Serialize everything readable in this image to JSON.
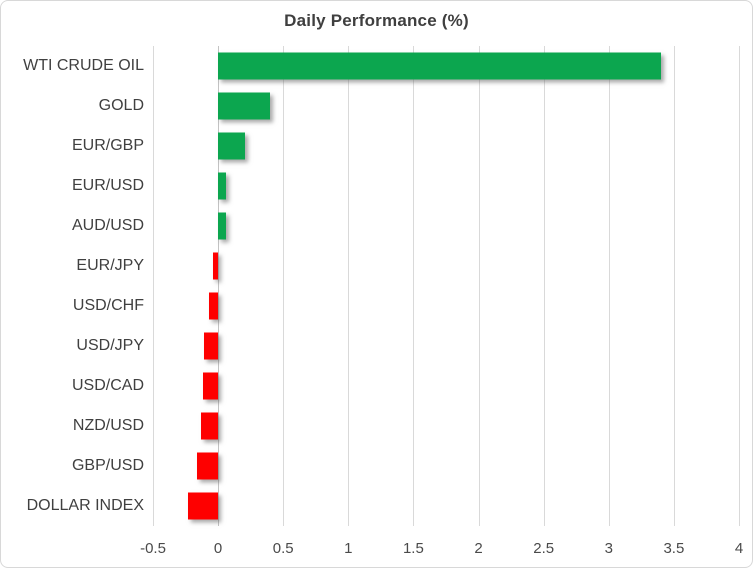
{
  "chart": {
    "title": "Daily Performance (%)",
    "colors": {
      "positive_bar": "#0ca64f",
      "negative_bar": "#fe0000",
      "gridline": "#d9d9d9",
      "zero_axis": "#c3c3c3",
      "category_label": "#404040",
      "tick_label": "#4a4a4a",
      "title_text": "#3f3f3f",
      "frame_border": "#d8d8d8"
    }
  },
  "chart_data": {
    "type": "bar",
    "orientation": "horizontal",
    "title": "Daily Performance (%)",
    "categories": [
      "WTI CRUDE OIL",
      "GOLD",
      "EUR/GBP",
      "EUR/USD",
      "AUD/USD",
      "EUR/JPY",
      "USD/CHF",
      "USD/JPY",
      "USD/CAD",
      "NZD/USD",
      "GBP/USD",
      "DOLLAR INDEX"
    ],
    "values": [
      3.4,
      0.4,
      0.21,
      0.06,
      0.06,
      -0.04,
      -0.07,
      -0.11,
      -0.12,
      -0.13,
      -0.16,
      -0.23
    ],
    "xlabel": "",
    "ylabel": "",
    "xlim": [
      -0.5,
      4
    ],
    "xticks": [
      -0.5,
      0,
      0.5,
      1,
      1.5,
      2,
      2.5,
      3,
      3.5,
      4
    ],
    "xtick_labels": [
      "-0.5",
      "0",
      "0.5",
      "1",
      "1.5",
      "2",
      "2.5",
      "3",
      "3.5",
      "4"
    ],
    "grid": true,
    "legend": "none",
    "color_rule": "green when value >= 0, red when value < 0",
    "bar_effect": "drop shadow bottom-right"
  }
}
